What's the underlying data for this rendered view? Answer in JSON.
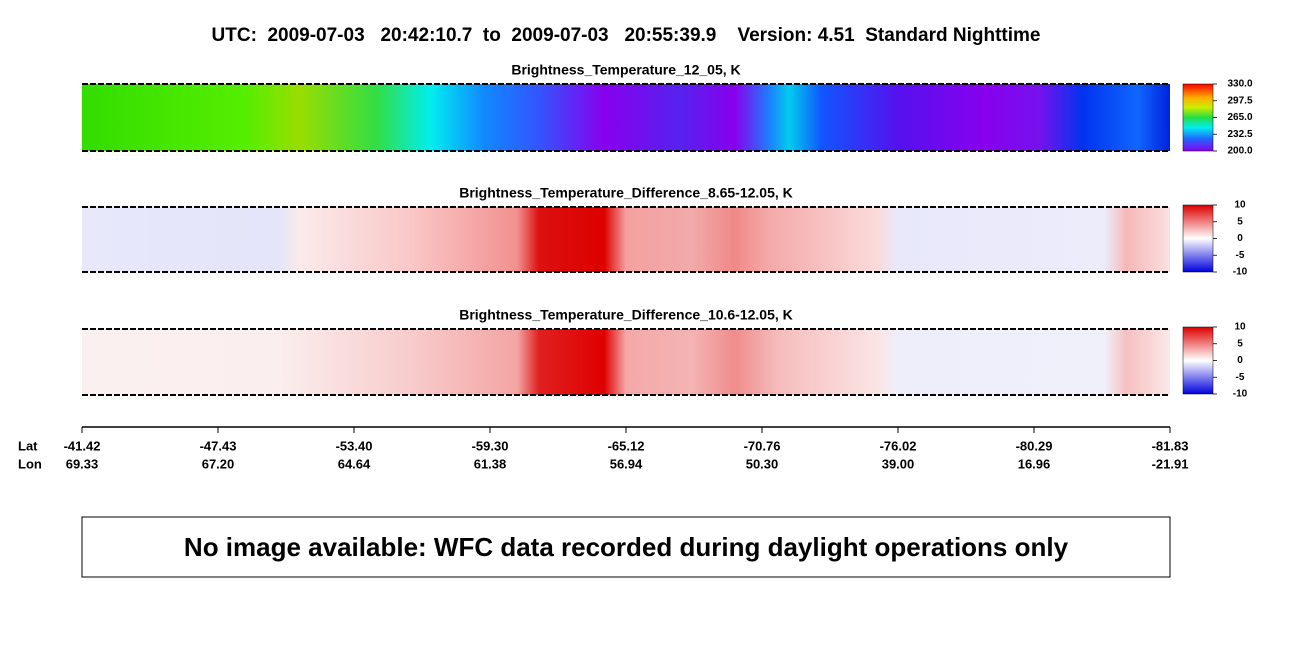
{
  "title": "UTC:  2009-07-03   20:42:10.7  to  2009-07-03   20:55:39.9    Version: 4.51  Standard Nighttime",
  "panels": [
    {
      "title": "Brightness_Temperature_12_05, K",
      "colorbar_labels": [
        "330.0",
        "297.5",
        "265.0",
        "232.5",
        "200.0"
      ]
    },
    {
      "title": "Brightness_Temperature_Difference_8.65-12.05, K",
      "colorbar_labels": [
        "10",
        "5",
        "0",
        "-5",
        "-10"
      ]
    },
    {
      "title": "Brightness_Temperature_Difference_10.6-12.05, K",
      "colorbar_labels": [
        "10",
        "5",
        "0",
        "-5",
        "-10"
      ]
    }
  ],
  "axis": {
    "lat_label": "Lat",
    "lon_label": "Lon",
    "lat": [
      "-41.42",
      "-47.43",
      "-53.40",
      "-59.30",
      "-65.12",
      "-70.76",
      "-76.02",
      "-80.29",
      "-81.83"
    ],
    "lon": [
      "69.33",
      "67.20",
      "64.64",
      "61.38",
      "56.94",
      "50.30",
      "39.00",
      "16.96",
      "-21.91"
    ]
  },
  "notice": "No image available: WFC data recorded during daylight operations only"
}
